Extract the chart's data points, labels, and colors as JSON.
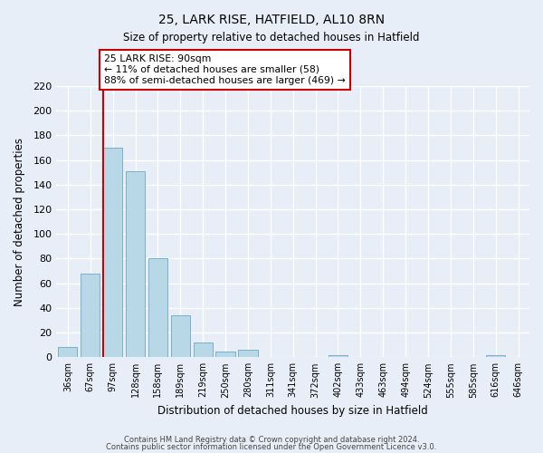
{
  "title": "25, LARK RISE, HATFIELD, AL10 8RN",
  "subtitle": "Size of property relative to detached houses in Hatfield",
  "xlabel": "Distribution of detached houses by size in Hatfield",
  "ylabel": "Number of detached properties",
  "bar_labels": [
    "36sqm",
    "67sqm",
    "97sqm",
    "128sqm",
    "158sqm",
    "189sqm",
    "219sqm",
    "250sqm",
    "280sqm",
    "311sqm",
    "341sqm",
    "372sqm",
    "402sqm",
    "433sqm",
    "463sqm",
    "494sqm",
    "524sqm",
    "555sqm",
    "585sqm",
    "616sqm",
    "646sqm"
  ],
  "bar_values": [
    8,
    68,
    170,
    151,
    80,
    34,
    12,
    5,
    6,
    0,
    0,
    0,
    2,
    0,
    0,
    0,
    0,
    0,
    0,
    2,
    0
  ],
  "bar_color": "#b8d8e8",
  "bar_edge_color": "#7ab0cc",
  "highlight_line_color": "#cc0000",
  "annotation_line1": "25 LARK RISE: 90sqm",
  "annotation_line2": "← 11% of detached houses are smaller (58)",
  "annotation_line3": "88% of semi-detached houses are larger (469) →",
  "annotation_box_color": "#ffffff",
  "annotation_border_color": "#cc0000",
  "ylim": [
    0,
    220
  ],
  "yticks": [
    0,
    20,
    40,
    60,
    80,
    100,
    120,
    140,
    160,
    180,
    200,
    220
  ],
  "footer1": "Contains HM Land Registry data © Crown copyright and database right 2024.",
  "footer2": "Contains public sector information licensed under the Open Government Licence v3.0.",
  "background_color": "#e8eef8",
  "grid_color": "#ffffff"
}
